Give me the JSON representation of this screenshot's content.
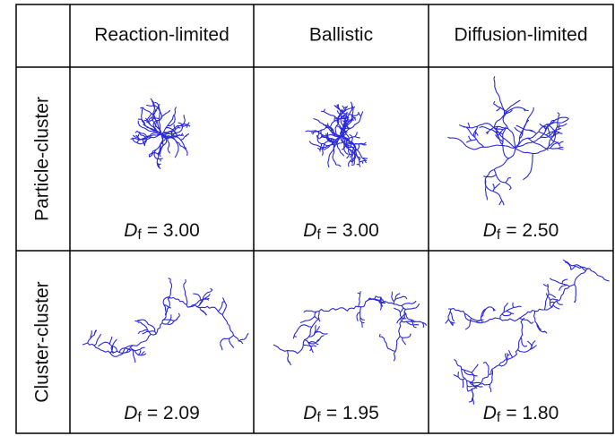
{
  "table": {
    "columns": [
      "Reaction-limited",
      "Ballistic",
      "Diffusion-limited"
    ],
    "rows": [
      {
        "label": "Particle-cluster",
        "cells": [
          {
            "symbol": "D",
            "subscript": "f",
            "text": "= 3.00"
          },
          {
            "symbol": "D",
            "subscript": "f",
            "text": "= 3.00"
          },
          {
            "symbol": "D",
            "subscript": "f",
            "text": "= 2.50"
          }
        ]
      },
      {
        "label": "Cluster-cluster",
        "cells": [
          {
            "symbol": "D",
            "subscript": "f",
            "text": "= 2.09"
          },
          {
            "symbol": "D",
            "subscript": "f",
            "text": "= 1.95"
          },
          {
            "symbol": "D",
            "subscript": "f",
            "text": "= 1.80"
          }
        ]
      }
    ]
  }
}
